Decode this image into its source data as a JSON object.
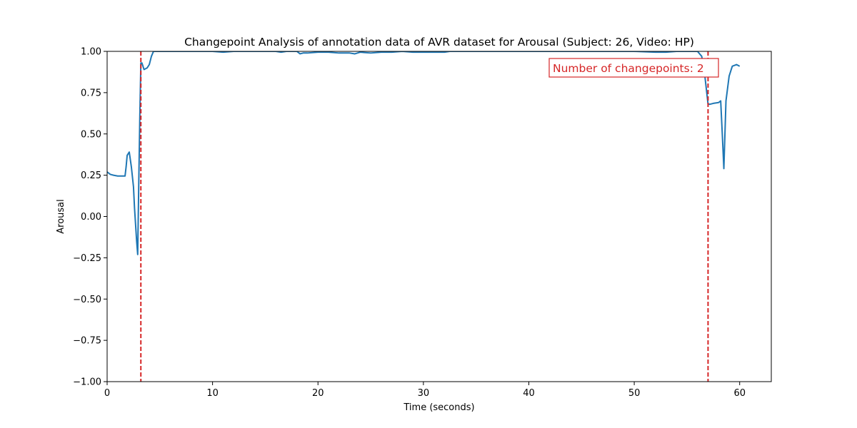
{
  "chart_data": {
    "type": "line",
    "title": "Changepoint Analysis of annotation data of AVR dataset for Arousal (Subject: 26, Video: HP)",
    "xlabel": "Time (seconds)",
    "ylabel": "Arousal",
    "xlim": [
      0,
      63
    ],
    "ylim": [
      -1.0,
      1.0
    ],
    "x_ticks": [
      0,
      10,
      20,
      30,
      40,
      50,
      60
    ],
    "x_tick_labels": [
      "0",
      "10",
      "20",
      "30",
      "40",
      "50",
      "60"
    ],
    "y_ticks": [
      1.0,
      0.75,
      0.5,
      0.25,
      0.0,
      -0.25,
      -0.5,
      -0.75,
      -1.0
    ],
    "y_tick_labels": [
      "1.00",
      "0.75",
      "0.50",
      "0.25",
      "0.00",
      "−0.25",
      "−0.50",
      "−0.75",
      "−1.00"
    ],
    "grid": false,
    "line_color": "#1f77b4",
    "changepoint_color": "#d62728",
    "series": [
      {
        "x": [
          0,
          0.3,
          0.6,
          1.0,
          1.3,
          1.7,
          1.8,
          1.9,
          2.1,
          2.3,
          2.5,
          2.6,
          2.7,
          2.8,
          2.9,
          3.0,
          3.1,
          3.2,
          3.3,
          3.5,
          3.8,
          4.0,
          4.2,
          4.4,
          4.7,
          5.0,
          6.0,
          7.0,
          8.0,
          9.0,
          10.0,
          11.0,
          12.0,
          13.0,
          14.0,
          15.0,
          16.0,
          16.5,
          17.0,
          18.0,
          18.3,
          18.6,
          19.0,
          20.0,
          21.0,
          22.0,
          23.0,
          23.5,
          24.0,
          25.0,
          26.0,
          27.0,
          28.0,
          29.0,
          30.0,
          31.0,
          32.0,
          32.5,
          33.0,
          35.0,
          40.0,
          45.0,
          49.0,
          50.0,
          52.0,
          53.0,
          54.0,
          55.5,
          56.0,
          56.4,
          56.7,
          57.0,
          57.2,
          57.5,
          58.0,
          58.2,
          58.35,
          58.5,
          58.7,
          59.0,
          59.3,
          59.7,
          60.0
        ],
        "y": [
          0.27,
          0.255,
          0.25,
          0.245,
          0.245,
          0.245,
          0.3,
          0.37,
          0.39,
          0.3,
          0.18,
          0.05,
          -0.05,
          -0.15,
          -0.23,
          0.2,
          0.6,
          0.93,
          0.93,
          0.89,
          0.9,
          0.92,
          0.97,
          1.0,
          1.0,
          1.0,
          1.0,
          1.0,
          1.0,
          1.0,
          1.0,
          0.995,
          1.0,
          1.0,
          1.0,
          1.0,
          1.0,
          0.995,
          1.0,
          1.0,
          0.985,
          0.99,
          0.99,
          0.995,
          0.995,
          0.99,
          0.99,
          0.985,
          0.995,
          0.99,
          0.995,
          0.995,
          1.0,
          0.995,
          0.995,
          0.995,
          0.995,
          1.0,
          1.0,
          1.0,
          1.0,
          1.0,
          1.0,
          1.0,
          0.995,
          0.995,
          1.0,
          1.0,
          1.0,
          0.97,
          0.85,
          0.68,
          0.68,
          0.685,
          0.69,
          0.7,
          0.5,
          0.29,
          0.7,
          0.85,
          0.91,
          0.92,
          0.91
        ]
      }
    ],
    "changepoints": [
      3.2,
      57.0
    ],
    "annotation": "Number of changepoints: 2"
  }
}
